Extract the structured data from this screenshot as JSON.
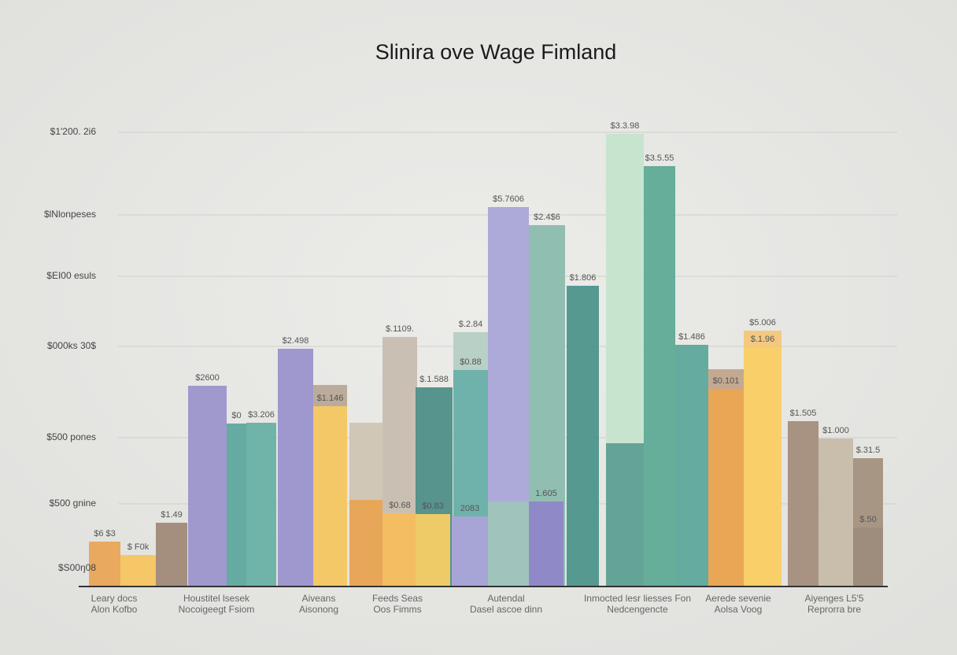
{
  "chart_data": {
    "type": "bar",
    "title": "Slinira ove Wage  Fimland",
    "ylim": [
      0,
      600
    ],
    "yticks": [
      {
        "value": 577,
        "label": "$1'200. 2i6"
      },
      {
        "value": 472,
        "label": "$lNlonpeses"
      },
      {
        "value": 394,
        "label": "$EI00 esuls"
      },
      {
        "value": 305,
        "label": "$000ks 30$"
      },
      {
        "value": 189,
        "label": "$500 pones"
      },
      {
        "value": 105,
        "label": "$500 gnine"
      },
      {
        "value": 23,
        "label": "$S00ŋ08"
      }
    ],
    "grid": true,
    "categories": [
      [
        "Leary docs",
        "Alon Kofbo"
      ],
      [
        "Houstitel lsesek",
        "Nocoigeegt Fsiom"
      ],
      [
        "Aiveans",
        "Aisonong"
      ],
      [
        "Feeds Seas",
        "Oos Fimms"
      ],
      [
        "Autendal",
        "Dasel ascoe dinn"
      ],
      [
        "Inmocted lesr liesses Fon",
        "Nedcengencte"
      ],
      [
        "Aerede sevenie",
        "Aolsa Voog"
      ],
      [
        "Aiyenges L5'5",
        "Reprorra bre"
      ]
    ],
    "bars": [
      {
        "value": 57,
        "color": "#e9a556",
        "label": "$6 $3"
      },
      {
        "value": 40,
        "color": "#f7c560",
        "label": "$ F0k"
      },
      {
        "value": 81,
        "color": "#a08a78",
        "label": "$1.49"
      },
      {
        "value": 255,
        "color": "#9b95cc",
        "label": "$2600"
      },
      {
        "value": 207,
        "color": "#5fa89e",
        "label": "$0"
      },
      {
        "value": 208,
        "color": "#69b0a5",
        "label": "$3.206"
      },
      {
        "value": 302,
        "color": "#9a94cc",
        "label": "$2.498"
      },
      {
        "value": 256,
        "color": "#b8a896"
      },
      {
        "value": 229,
        "color": "#f7c963",
        "label": "$1.146"
      },
      {
        "value": 208,
        "color": "#d0c5b4"
      },
      {
        "value": 110,
        "color": "#e9a453"
      },
      {
        "value": 317,
        "color": "#c8bdb0",
        "label": "$.1109."
      },
      {
        "value": 93,
        "color": "#f5bd5e",
        "label": "$0.68"
      },
      {
        "value": 253,
        "color": "#4f8f88",
        "label": "$.1.588"
      },
      {
        "value": 92,
        "color": "#f8cd65",
        "label": "$0.83"
      },
      {
        "value": 323,
        "color": "#b6cfc5",
        "label": "$.2.84"
      },
      {
        "value": 275,
        "color": "#6ab0ab",
        "label": "$0.88"
      },
      {
        "value": 89,
        "color": "#aaa3d8",
        "label": "2083"
      },
      {
        "value": 482,
        "color": "#aaa6d8",
        "label": "$5.7606"
      },
      {
        "value": 108,
        "color": "#9fc5bb"
      },
      {
        "value": 459,
        "color": "#8bbcae",
        "label": "$2.4$6"
      },
      {
        "value": 108,
        "color": "#8f86c8",
        "label": "1.605"
      },
      {
        "value": 382,
        "color": "#4e958c",
        "label": "$1.806"
      },
      {
        "value": 575,
        "color": "#c5e4cc",
        "label": "$3.3.98"
      },
      {
        "value": 182,
        "color": "#5fa092"
      },
      {
        "value": 534,
        "color": "#5faa96",
        "label": "$3.5.55"
      },
      {
        "value": 307,
        "color": "#5fa89b",
        "label": "$1.486"
      },
      {
        "value": 276,
        "color": "#c1a58a"
      },
      {
        "value": 251,
        "color": "#eba551",
        "label": "$0.101"
      },
      {
        "value": 325,
        "color": "#f3c77a",
        "label": "$5.006"
      },
      {
        "value": 304,
        "color": "#f8d067",
        "label": "$.1.96"
      },
      {
        "value": 210,
        "color": "#a48d7c",
        "label": "$1.505"
      },
      {
        "value": 188,
        "color": "#c7bba9",
        "label": "$1.000"
      },
      {
        "value": 163,
        "color": "#a49180",
        "label": "$.31.5"
      },
      {
        "value": 75,
        "color": "#9d8c7c",
        "label": "$.50"
      }
    ]
  }
}
